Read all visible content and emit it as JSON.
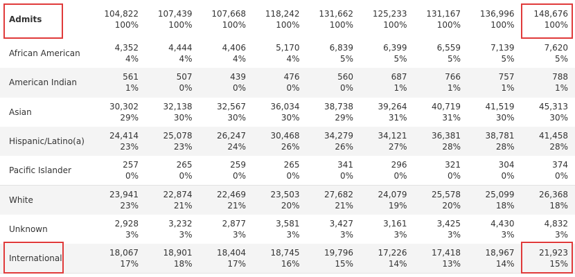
{
  "header": {
    "label": "Admits",
    "cells": [
      [
        "104,822",
        "100%"
      ],
      [
        "107,439",
        "100%"
      ],
      [
        "107,668",
        "100%"
      ],
      [
        "118,242",
        "100%"
      ],
      [
        "131,662",
        "100%"
      ],
      [
        "125,233",
        "100%"
      ],
      [
        "131,167",
        "100%"
      ],
      [
        "136,996",
        "100%"
      ],
      [
        "148,676",
        "100%"
      ]
    ]
  },
  "rows": [
    {
      "label": "African American",
      "cells": [
        [
          "4,352",
          "4%"
        ],
        [
          "4,444",
          "4%"
        ],
        [
          "4,406",
          "4%"
        ],
        [
          "5,170",
          "4%"
        ],
        [
          "6,839",
          "5%"
        ],
        [
          "6,399",
          "5%"
        ],
        [
          "6,559",
          "5%"
        ],
        [
          "7,139",
          "5%"
        ],
        [
          "7,620",
          "5%"
        ]
      ]
    },
    {
      "label": "American Indian",
      "cells": [
        [
          "561",
          "1%"
        ],
        [
          "507",
          "0%"
        ],
        [
          "439",
          "0%"
        ],
        [
          "476",
          "0%"
        ],
        [
          "560",
          "0%"
        ],
        [
          "687",
          "1%"
        ],
        [
          "766",
          "1%"
        ],
        [
          "757",
          "1%"
        ],
        [
          "788",
          "1%"
        ]
      ]
    },
    {
      "label": "Asian",
      "cells": [
        [
          "30,302",
          "29%"
        ],
        [
          "32,138",
          "30%"
        ],
        [
          "32,567",
          "30%"
        ],
        [
          "36,034",
          "30%"
        ],
        [
          "38,738",
          "29%"
        ],
        [
          "39,264",
          "31%"
        ],
        [
          "40,719",
          "31%"
        ],
        [
          "41,519",
          "30%"
        ],
        [
          "45,313",
          "30%"
        ]
      ]
    },
    {
      "label": "Hispanic/Latino(a)",
      "cells": [
        [
          "24,414",
          "23%"
        ],
        [
          "25,078",
          "23%"
        ],
        [
          "26,247",
          "24%"
        ],
        [
          "30,468",
          "26%"
        ],
        [
          "34,279",
          "26%"
        ],
        [
          "34,121",
          "27%"
        ],
        [
          "36,381",
          "28%"
        ],
        [
          "38,781",
          "28%"
        ],
        [
          "41,458",
          "28%"
        ]
      ]
    },
    {
      "label": "Pacific Islander",
      "cells": [
        [
          "257",
          "0%"
        ],
        [
          "265",
          "0%"
        ],
        [
          "259",
          "0%"
        ],
        [
          "265",
          "0%"
        ],
        [
          "341",
          "0%"
        ],
        [
          "296",
          "0%"
        ],
        [
          "321",
          "0%"
        ],
        [
          "304",
          "0%"
        ],
        [
          "374",
          "0%"
        ]
      ]
    },
    {
      "label": "White",
      "cells": [
        [
          "23,941",
          "23%"
        ],
        [
          "22,874",
          "21%"
        ],
        [
          "22,469",
          "21%"
        ],
        [
          "23,503",
          "20%"
        ],
        [
          "27,682",
          "21%"
        ],
        [
          "24,079",
          "19%"
        ],
        [
          "25,578",
          "20%"
        ],
        [
          "25,099",
          "18%"
        ],
        [
          "26,368",
          "18%"
        ]
      ]
    },
    {
      "label": "Unknown",
      "cells": [
        [
          "2,928",
          "3%"
        ],
        [
          "3,232",
          "3%"
        ],
        [
          "2,877",
          "3%"
        ],
        [
          "3,581",
          "3%"
        ],
        [
          "3,427",
          "3%"
        ],
        [
          "3,161",
          "3%"
        ],
        [
          "3,425",
          "3%"
        ],
        [
          "4,430",
          "3%"
        ],
        [
          "4,832",
          "3%"
        ]
      ]
    },
    {
      "label": "International",
      "cells": [
        [
          "18,067",
          "17%"
        ],
        [
          "18,901",
          "18%"
        ],
        [
          "18,404",
          "17%"
        ],
        [
          "18,745",
          "16%"
        ],
        [
          "19,796",
          "15%"
        ],
        [
          "17,226",
          "14%"
        ],
        [
          "17,418",
          "13%"
        ],
        [
          "18,967",
          "14%"
        ],
        [
          "21,923",
          "15%"
        ]
      ]
    }
  ]
}
